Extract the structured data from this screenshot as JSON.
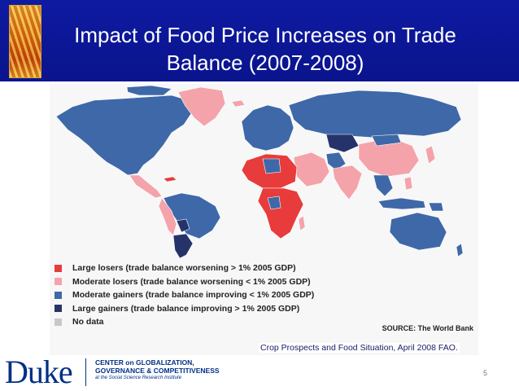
{
  "slide": {
    "title_line1": "Impact of Food Price Increases on Trade",
    "title_line2": "Balance (2007-2008)",
    "page_number": "5"
  },
  "map": {
    "colors": {
      "large_losers": "#e83b3b",
      "moderate_losers": "#f4a3aa",
      "moderate_gainers": "#3e68a8",
      "large_gainers": "#26336a",
      "no_data": "#c8c8c8",
      "background": "#f7f7f7"
    },
    "legend": [
      {
        "label": "Large losers (trade balance worsening > 1% 2005 GDP)",
        "category": "large_losers"
      },
      {
        "label": "Moderate losers (trade balance worsening < 1% 2005 GDP)",
        "category": "moderate_losers"
      },
      {
        "label": "Moderate gainers (trade balance improving < 1% 2005 GDP)",
        "category": "moderate_gainers"
      },
      {
        "label": "Large gainers (trade balance improving > 1% 2005 GDP)",
        "category": "large_gainers"
      },
      {
        "label": "No data",
        "category": "no_data"
      }
    ],
    "source": "SOURCE: The World Bank"
  },
  "citation": "Crop Prospects and Food Situation, April 2008 FAO.",
  "footer": {
    "logo_word": "Duke",
    "center_line1": "CENTER on GLOBALIZATION,",
    "center_line2": "GOVERNANCE & COMPETITIVENESS",
    "center_line3": "at the Social Science Research Institute"
  }
}
